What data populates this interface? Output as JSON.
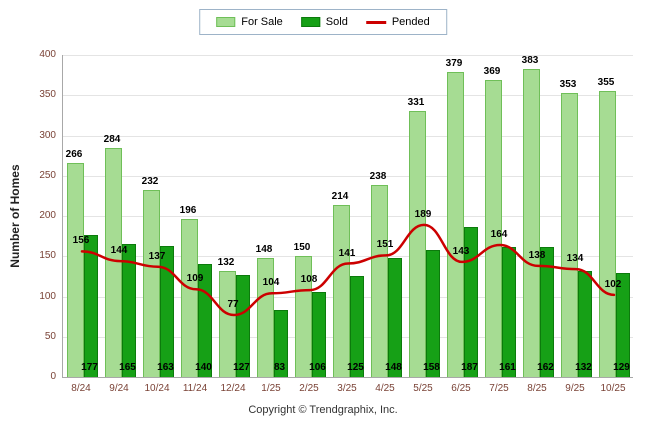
{
  "legend": {
    "for_sale": "For Sale",
    "sold": "Sold",
    "pended": "Pended"
  },
  "ylabel": "Number of Homes",
  "footer": "Copyright © Trendgraphix, Inc.",
  "colors": {
    "for_sale_fill": "#a6dc93",
    "for_sale_border": "#6fbf58",
    "sold_fill": "#16a016",
    "sold_border": "#0c7a0c",
    "pended_line": "#cc0000",
    "axis_label": "#7a4236",
    "grid": "#e4e4e4"
  },
  "chart_data": {
    "type": "bar",
    "categories": [
      "8/24",
      "9/24",
      "10/24",
      "11/24",
      "12/24",
      "1/25",
      "2/25",
      "3/25",
      "4/25",
      "5/25",
      "6/25",
      "7/25",
      "8/25",
      "9/25",
      "10/25"
    ],
    "series": [
      {
        "name": "For Sale",
        "type": "bar",
        "values": [
          266,
          284,
          232,
          196,
          132,
          148,
          150,
          214,
          238,
          331,
          379,
          369,
          383,
          353,
          355
        ]
      },
      {
        "name": "Sold",
        "type": "bar",
        "values": [
          177,
          165,
          163,
          140,
          127,
          83,
          106,
          125,
          148,
          158,
          187,
          161,
          162,
          132,
          129
        ]
      },
      {
        "name": "Pended",
        "type": "line",
        "values": [
          156,
          144,
          137,
          109,
          77,
          104,
          108,
          141,
          151,
          189,
          143,
          164,
          138,
          134,
          102
        ]
      }
    ],
    "title": "",
    "xlabel": "",
    "ylabel": "Number of Homes",
    "ylim": [
      0,
      400
    ],
    "ytick_step": 50,
    "grid": true,
    "legend_position": "top"
  }
}
